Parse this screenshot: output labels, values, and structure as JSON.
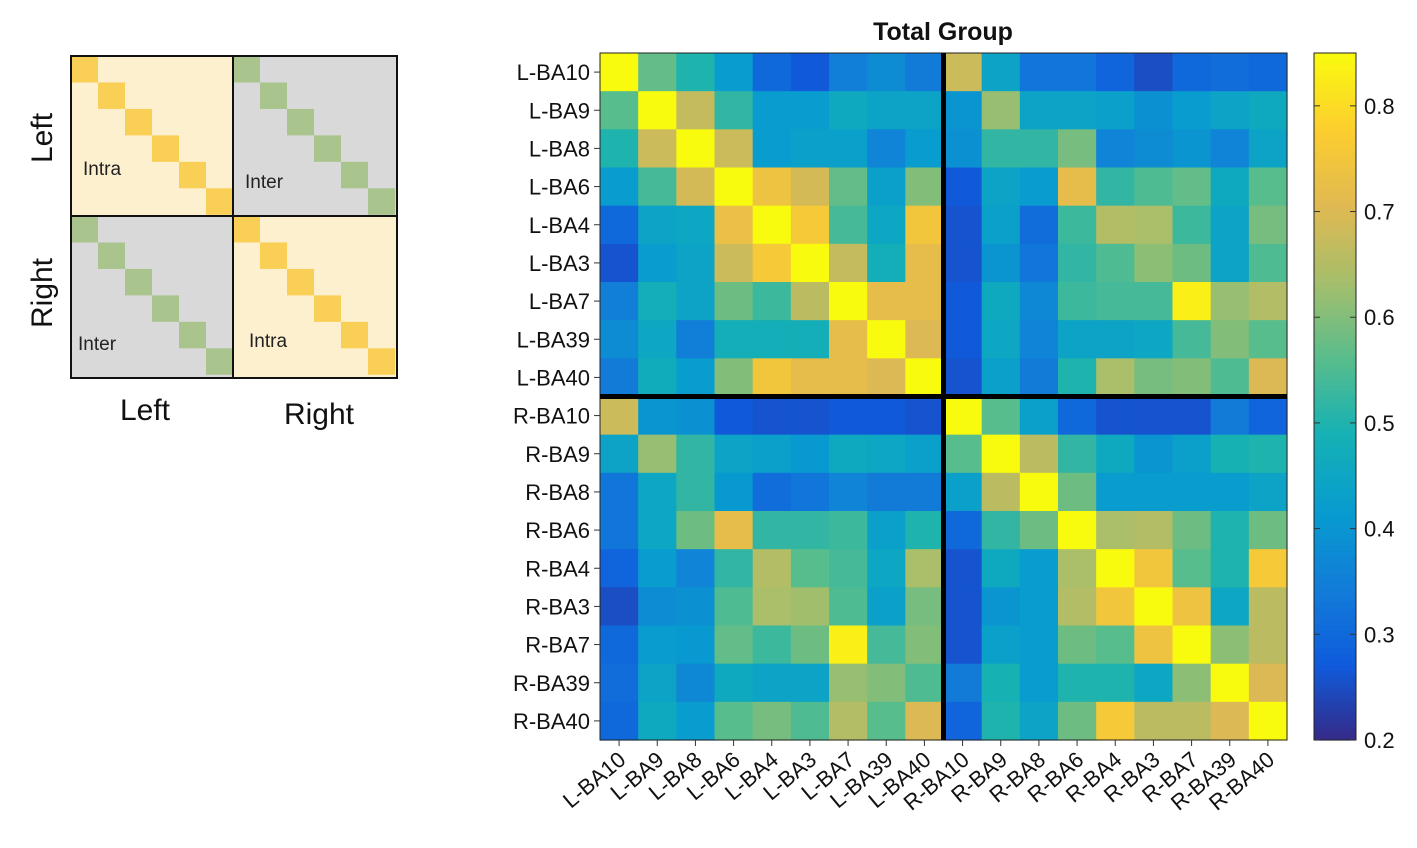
{
  "schematic": {
    "row_labels": [
      "Left",
      "Right"
    ],
    "col_labels": [
      "Left",
      "Right"
    ],
    "quadrants": {
      "top_left": "Intra",
      "top_right": "Inter",
      "bottom_left": "Inter",
      "bottom_right": "Intra"
    },
    "colors": {
      "intra_bg": "#fdf0cf",
      "inter_bg": "#d9d9d9",
      "intra_diag": "#f9cf55",
      "inter_diag": "#a9c48c",
      "border": "#111111"
    }
  },
  "chart_data": {
    "type": "heatmap",
    "title": "Total Group",
    "xlabel": "",
    "ylabel": "",
    "labels": [
      "L-BA10",
      "L-BA9",
      "L-BA8",
      "L-BA6",
      "L-BA4",
      "L-BA3",
      "L-BA7",
      "L-BA39",
      "L-BA40",
      "R-BA10",
      "R-BA9",
      "R-BA8",
      "R-BA6",
      "R-BA4",
      "R-BA3",
      "R-BA7",
      "R-BA39",
      "R-BA40"
    ],
    "matrix": [
      [
        0.85,
        0.57,
        0.5,
        0.42,
        0.3,
        0.27,
        0.35,
        0.38,
        0.34,
        0.68,
        0.44,
        0.33,
        0.33,
        0.29,
        0.25,
        0.3,
        0.31,
        0.3
      ],
      [
        0.56,
        0.85,
        0.67,
        0.52,
        0.42,
        0.42,
        0.46,
        0.44,
        0.44,
        0.4,
        0.62,
        0.44,
        0.44,
        0.43,
        0.39,
        0.42,
        0.44,
        0.46
      ],
      [
        0.5,
        0.68,
        0.85,
        0.68,
        0.42,
        0.43,
        0.43,
        0.36,
        0.42,
        0.39,
        0.52,
        0.52,
        0.59,
        0.36,
        0.38,
        0.4,
        0.36,
        0.44
      ],
      [
        0.42,
        0.54,
        0.69,
        0.85,
        0.74,
        0.69,
        0.57,
        0.43,
        0.6,
        0.27,
        0.44,
        0.42,
        0.72,
        0.52,
        0.55,
        0.57,
        0.46,
        0.56
      ],
      [
        0.3,
        0.44,
        0.45,
        0.73,
        0.85,
        0.76,
        0.54,
        0.45,
        0.75,
        0.26,
        0.43,
        0.31,
        0.53,
        0.65,
        0.64,
        0.53,
        0.44,
        0.59
      ],
      [
        0.26,
        0.42,
        0.44,
        0.68,
        0.76,
        0.85,
        0.67,
        0.48,
        0.72,
        0.26,
        0.4,
        0.33,
        0.52,
        0.55,
        0.61,
        0.58,
        0.44,
        0.55
      ],
      [
        0.35,
        0.48,
        0.44,
        0.58,
        0.53,
        0.66,
        0.85,
        0.72,
        0.72,
        0.27,
        0.46,
        0.37,
        0.53,
        0.54,
        0.54,
        0.83,
        0.62,
        0.65
      ],
      [
        0.38,
        0.45,
        0.35,
        0.48,
        0.48,
        0.48,
        0.72,
        0.85,
        0.7,
        0.27,
        0.45,
        0.36,
        0.44,
        0.44,
        0.45,
        0.54,
        0.6,
        0.56
      ],
      [
        0.34,
        0.47,
        0.42,
        0.6,
        0.75,
        0.72,
        0.72,
        0.7,
        0.85,
        0.26,
        0.43,
        0.34,
        0.5,
        0.64,
        0.59,
        0.6,
        0.55,
        0.7
      ],
      [
        0.68,
        0.4,
        0.39,
        0.27,
        0.26,
        0.26,
        0.27,
        0.27,
        0.26,
        0.85,
        0.56,
        0.43,
        0.3,
        0.26,
        0.26,
        0.26,
        0.34,
        0.29
      ],
      [
        0.44,
        0.62,
        0.52,
        0.44,
        0.43,
        0.41,
        0.46,
        0.45,
        0.43,
        0.56,
        0.85,
        0.66,
        0.52,
        0.46,
        0.4,
        0.43,
        0.49,
        0.5
      ],
      [
        0.33,
        0.45,
        0.52,
        0.41,
        0.31,
        0.33,
        0.36,
        0.34,
        0.34,
        0.43,
        0.66,
        0.85,
        0.58,
        0.42,
        0.42,
        0.42,
        0.42,
        0.44
      ],
      [
        0.33,
        0.45,
        0.58,
        0.72,
        0.52,
        0.52,
        0.53,
        0.43,
        0.5,
        0.3,
        0.52,
        0.58,
        0.85,
        0.64,
        0.65,
        0.58,
        0.5,
        0.58
      ],
      [
        0.29,
        0.42,
        0.36,
        0.52,
        0.65,
        0.56,
        0.54,
        0.45,
        0.64,
        0.26,
        0.46,
        0.42,
        0.64,
        0.85,
        0.75,
        0.56,
        0.5,
        0.76
      ],
      [
        0.25,
        0.38,
        0.39,
        0.55,
        0.64,
        0.63,
        0.55,
        0.43,
        0.59,
        0.26,
        0.4,
        0.42,
        0.65,
        0.75,
        0.85,
        0.74,
        0.45,
        0.66
      ],
      [
        0.3,
        0.42,
        0.41,
        0.57,
        0.53,
        0.58,
        0.83,
        0.54,
        0.6,
        0.26,
        0.43,
        0.42,
        0.58,
        0.56,
        0.74,
        0.85,
        0.61,
        0.66
      ],
      [
        0.31,
        0.44,
        0.37,
        0.46,
        0.44,
        0.44,
        0.62,
        0.6,
        0.55,
        0.34,
        0.49,
        0.42,
        0.5,
        0.5,
        0.45,
        0.61,
        0.85,
        0.7
      ],
      [
        0.3,
        0.46,
        0.42,
        0.56,
        0.59,
        0.55,
        0.65,
        0.56,
        0.7,
        0.29,
        0.5,
        0.44,
        0.58,
        0.76,
        0.66,
        0.66,
        0.7,
        0.85
      ]
    ],
    "colorbar": {
      "range": [
        0.2,
        0.85
      ],
      "ticks": [
        "0.2",
        "0.3",
        "0.4",
        "0.5",
        "0.6",
        "0.7",
        "0.8"
      ],
      "colormap": "parula",
      "placement": "right"
    },
    "divider_after_index": 8,
    "divider_color": "#000000"
  }
}
